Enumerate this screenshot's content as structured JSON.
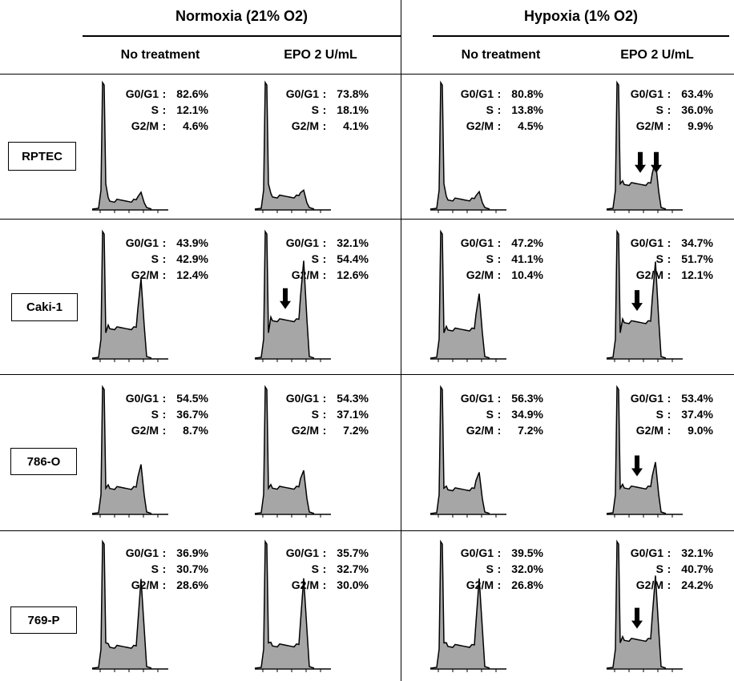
{
  "groups": [
    {
      "title": "Normoxia (21% O2)",
      "columns": [
        "No treatment",
        "EPO 2 U/mL"
      ]
    },
    {
      "title": "Hypoxia (1% O2)",
      "columns": [
        "No treatment",
        "EPO 2 U/mL"
      ]
    }
  ],
  "rows": [
    "RPTEC",
    "Caki-1",
    "786-O",
    "769-P"
  ],
  "stat_labels": [
    "G0/G1",
    "S",
    "G2/M"
  ],
  "colors": {
    "fill": "#a6a6a6",
    "line": "#000000",
    "background": "#ffffff"
  },
  "chart_data": {
    "type": "area",
    "description_axis": "DNA content histograms (flow cytometry), no axis labels shown",
    "panels": [
      {
        "row": "RPTEC",
        "condition": "Normoxia (21% O2)",
        "treatment": "No treatment",
        "stats": [
          "82.6%",
          "12.1%",
          "4.6%"
        ],
        "values": {
          "G0/G1": 82.6,
          "S": 12.1,
          "G2/M": 4.6
        },
        "arrows": 0
      },
      {
        "row": "RPTEC",
        "condition": "Normoxia (21% O2)",
        "treatment": "EPO 2 U/mL",
        "stats": [
          "73.8%",
          "18.1%",
          "4.1%"
        ],
        "values": {
          "G0/G1": 73.8,
          "S": 18.1,
          "G2/M": 4.1
        },
        "arrows": 0
      },
      {
        "row": "RPTEC",
        "condition": "Hypoxia (1% O2)",
        "treatment": "No treatment",
        "stats": [
          "80.8%",
          "13.8%",
          "4.5%"
        ],
        "values": {
          "G0/G1": 80.8,
          "S": 13.8,
          "G2/M": 4.5
        },
        "arrows": 0
      },
      {
        "row": "RPTEC",
        "condition": "Hypoxia (1% O2)",
        "treatment": "EPO 2 U/mL",
        "stats": [
          "63.4%",
          "36.0%",
          "9.9%"
        ],
        "values": {
          "G0/G1": 63.4,
          "S": 36.0,
          "G2/M": 9.9
        },
        "arrows": 2
      },
      {
        "row": "Caki-1",
        "condition": "Normoxia (21% O2)",
        "treatment": "No treatment",
        "stats": [
          "43.9%",
          "42.9%",
          "12.4%"
        ],
        "values": {
          "G0/G1": 43.9,
          "S": 42.9,
          "G2/M": 12.4
        },
        "arrows": 0
      },
      {
        "row": "Caki-1",
        "condition": "Normoxia (21% O2)",
        "treatment": "EPO 2 U/mL",
        "stats": [
          "32.1%",
          "54.4%",
          "12.6%"
        ],
        "values": {
          "G0/G1": 32.1,
          "S": 54.4,
          "G2/M": 12.6
        },
        "arrows": 1
      },
      {
        "row": "Caki-1",
        "condition": "Hypoxia (1% O2)",
        "treatment": "No treatment",
        "stats": [
          "47.2%",
          "41.1%",
          "10.4%"
        ],
        "values": {
          "G0/G1": 47.2,
          "S": 41.1,
          "G2/M": 10.4
        },
        "arrows": 0
      },
      {
        "row": "Caki-1",
        "condition": "Hypoxia (1% O2)",
        "treatment": "EPO 2 U/mL",
        "stats": [
          "34.7%",
          "51.7%",
          "12.1%"
        ],
        "values": {
          "G0/G1": 34.7,
          "S": 51.7,
          "G2/M": 12.1
        },
        "arrows": 1
      },
      {
        "row": "786-O",
        "condition": "Normoxia (21% O2)",
        "treatment": "No treatment",
        "stats": [
          "54.5%",
          "36.7%",
          "8.7%"
        ],
        "values": {
          "G0/G1": 54.5,
          "S": 36.7,
          "G2/M": 8.7
        },
        "arrows": 0
      },
      {
        "row": "786-O",
        "condition": "Normoxia (21% O2)",
        "treatment": "EPO 2 U/mL",
        "stats": [
          "54.3%",
          "37.1%",
          "7.2%"
        ],
        "values": {
          "G0/G1": 54.3,
          "S": 37.1,
          "G2/M": 7.2
        },
        "arrows": 0
      },
      {
        "row": "786-O",
        "condition": "Hypoxia (1% O2)",
        "treatment": "No treatment",
        "stats": [
          "56.3%",
          "34.9%",
          "7.2%"
        ],
        "values": {
          "G0/G1": 56.3,
          "S": 34.9,
          "G2/M": 7.2
        },
        "arrows": 0
      },
      {
        "row": "786-O",
        "condition": "Hypoxia (1% O2)",
        "treatment": "EPO 2 U/mL",
        "stats": [
          "53.4%",
          "37.4%",
          "9.0%"
        ],
        "values": {
          "G0/G1": 53.4,
          "S": 37.4,
          "G2/M": 9.0
        },
        "arrows": 1
      },
      {
        "row": "769-P",
        "condition": "Normoxia (21% O2)",
        "treatment": "No treatment",
        "stats": [
          "36.9%",
          "30.7%",
          "28.6%"
        ],
        "values": {
          "G0/G1": 36.9,
          "S": 30.7,
          "G2/M": 28.6
        },
        "arrows": 0
      },
      {
        "row": "769-P",
        "condition": "Normoxia (21% O2)",
        "treatment": "EPO 2 U/mL",
        "stats": [
          "35.7%",
          "32.7%",
          "30.0%"
        ],
        "values": {
          "G0/G1": 35.7,
          "S": 32.7,
          "G2/M": 30.0
        },
        "arrows": 0
      },
      {
        "row": "769-P",
        "condition": "Hypoxia (1% O2)",
        "treatment": "No treatment",
        "stats": [
          "39.5%",
          "32.0%",
          "26.8%"
        ],
        "values": {
          "G0/G1": 39.5,
          "S": 32.0,
          "G2/M": 26.8
        },
        "arrows": 0
      },
      {
        "row": "769-P",
        "condition": "Hypoxia (1% O2)",
        "treatment": "EPO 2 U/mL",
        "stats": [
          "32.1%",
          "40.7%",
          "24.2%"
        ],
        "values": {
          "G0/G1": 32.1,
          "S": 40.7,
          "G2/M": 24.2
        },
        "arrows": 1
      }
    ]
  }
}
